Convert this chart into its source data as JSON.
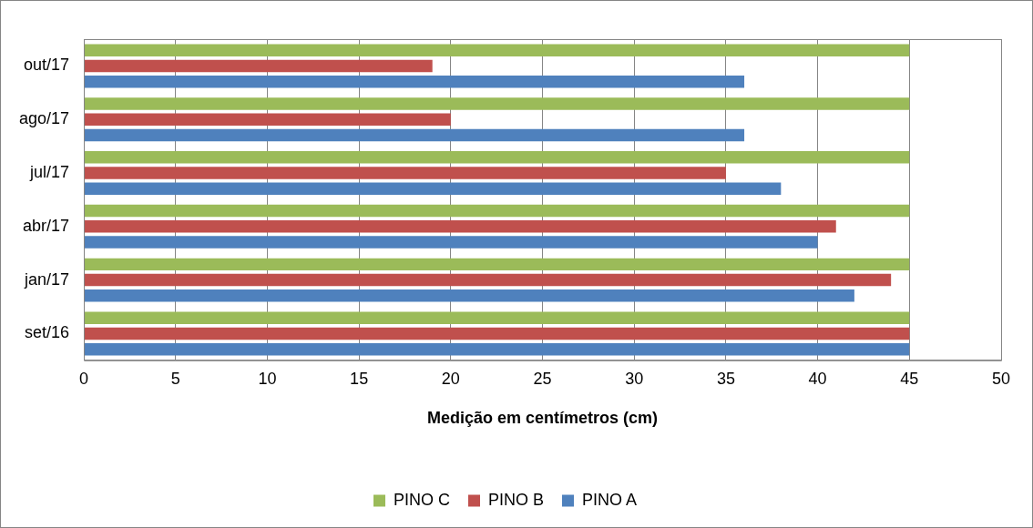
{
  "chart_data": {
    "type": "bar",
    "orientation": "horizontal",
    "xlabel": "Medição em centímetros (cm)",
    "categories": [
      "out/17",
      "ago/17",
      "jul/17",
      "abr/17",
      "jan/17",
      "set/16"
    ],
    "series": [
      {
        "name": "PINO C",
        "color": "#9bbb59",
        "values": [
          45,
          45,
          45,
          45,
          45,
          45
        ]
      },
      {
        "name": "PINO B",
        "color": "#c0504d",
        "values": [
          19,
          20,
          35,
          41,
          44,
          45
        ]
      },
      {
        "name": "PINO A",
        "color": "#4f81bd",
        "values": [
          36,
          36,
          38,
          40,
          42,
          45
        ]
      }
    ],
    "xlim": [
      0,
      50
    ],
    "xticks": [
      0,
      5,
      10,
      15,
      20,
      25,
      30,
      35,
      40,
      45,
      50
    ],
    "grid": "x",
    "legend": "bottom"
  }
}
